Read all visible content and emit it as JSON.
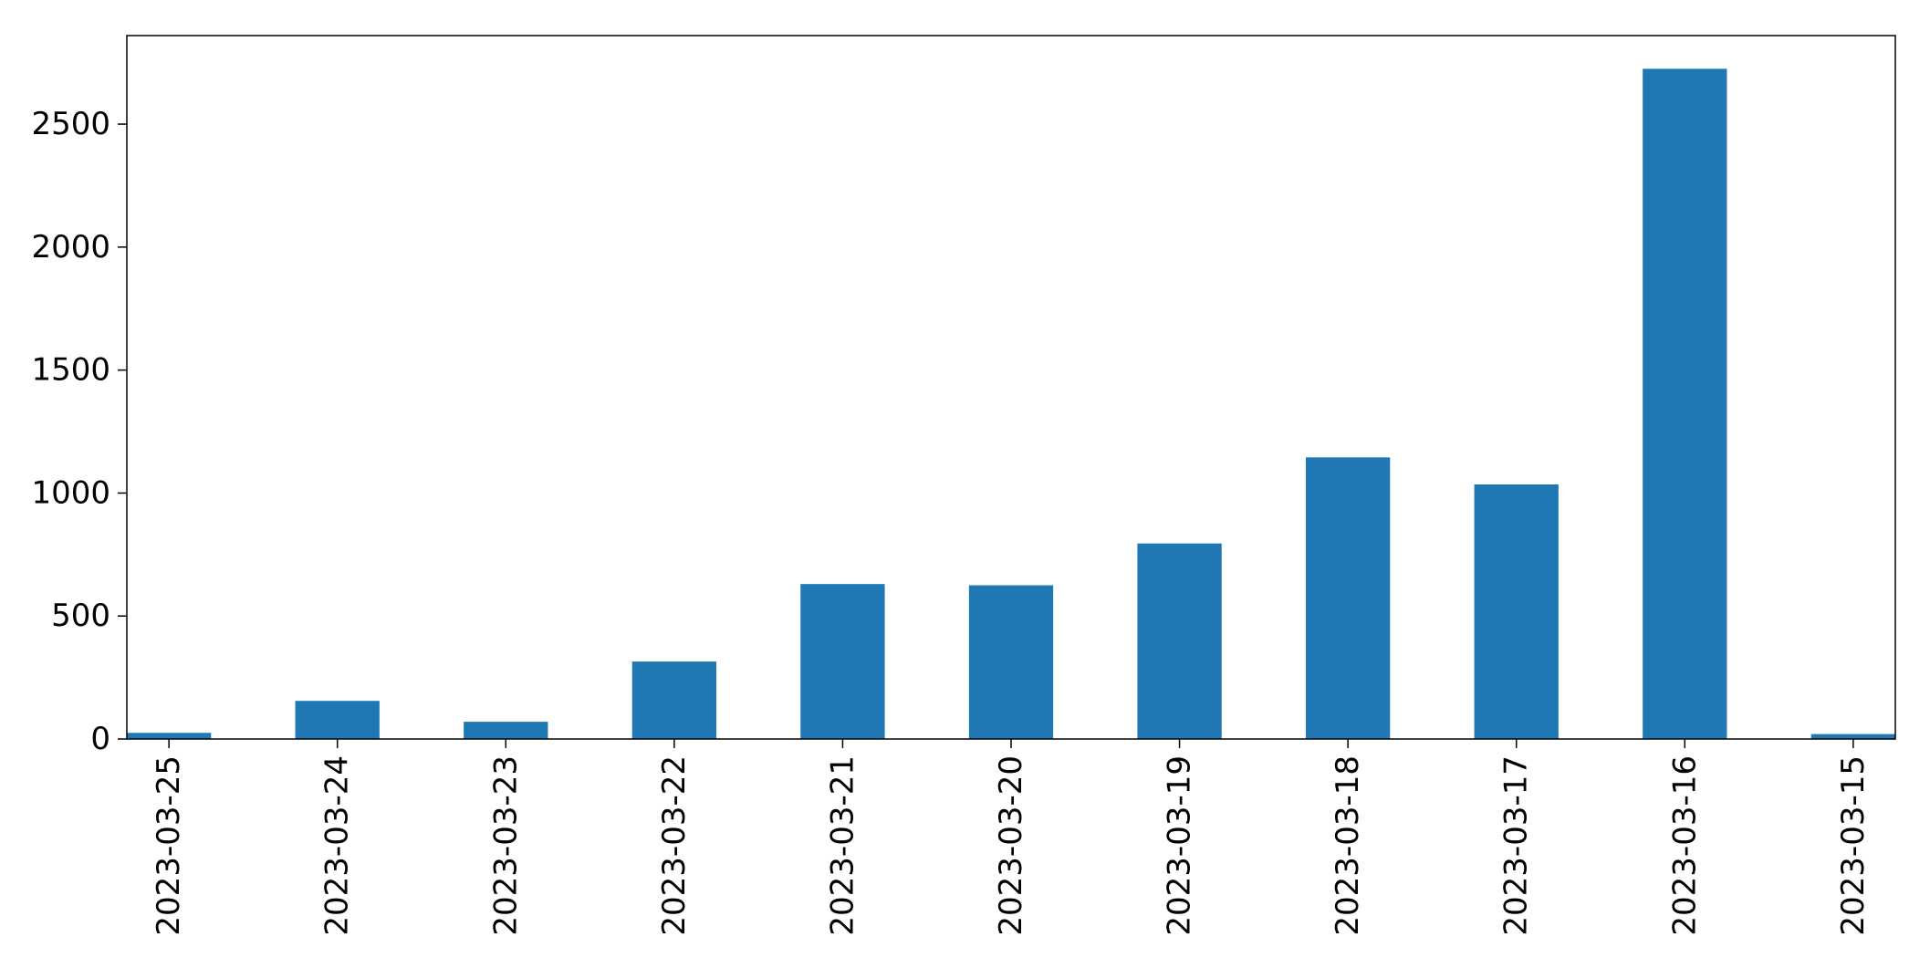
{
  "chart_data": {
    "type": "bar",
    "categories": [
      "2023-03-25",
      "2023-03-24",
      "2023-03-23",
      "2023-03-22",
      "2023-03-21",
      "2023-03-20",
      "2023-03-19",
      "2023-03-18",
      "2023-03-17",
      "2023-03-16",
      "2023-03-15"
    ],
    "values": [
      25,
      155,
      70,
      315,
      630,
      625,
      795,
      1145,
      1035,
      2725,
      20
    ],
    "yticks": [
      0,
      500,
      1000,
      1500,
      2000,
      2500
    ],
    "ytick_labels": [
      "0",
      "500",
      "1000",
      "1500",
      "2000",
      "2500"
    ],
    "ylim": [
      0,
      2860
    ],
    "bar_color": "#1f77b4",
    "grid": false,
    "legend": "none",
    "title": "",
    "xlabel": "",
    "ylabel": ""
  }
}
